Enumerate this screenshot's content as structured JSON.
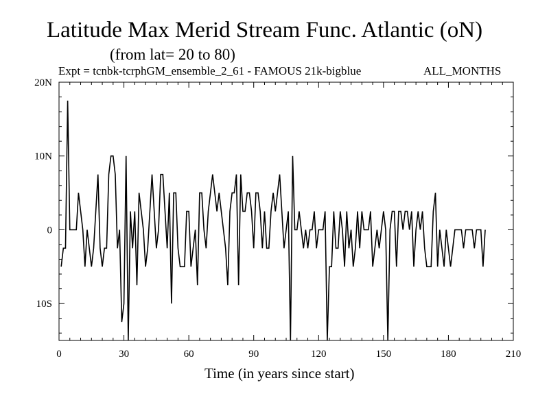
{
  "chart_data": {
    "type": "line",
    "title": "Latitude Max Merid Stream Func. Atlantic (oN)",
    "subtitle": "(from lat= 20 to 80)",
    "experiment": "Expt = tcnbk-tcrphGM_ensemble_2_61 - FAMOUS 21k-bigblue",
    "months": "ALL_MONTHS",
    "xlabel": "Time (in years since start)",
    "ylabel": "",
    "xlim": [
      0,
      210
    ],
    "ylim": [
      -15,
      20
    ],
    "x_ticks": [
      0,
      30,
      60,
      90,
      120,
      150,
      180,
      210
    ],
    "y_ticks": [
      {
        "value": 20,
        "label": "20N"
      },
      {
        "value": 10,
        "label": "10N"
      },
      {
        "value": 0,
        "label": "0"
      },
      {
        "value": -10,
        "label": "10S"
      }
    ],
    "grid": false,
    "x_start": 1,
    "x_step": 1,
    "series": [
      {
        "values": [
          -5,
          -2.5,
          -2.5,
          17.5,
          0,
          0,
          0,
          0,
          5,
          2.5,
          0,
          -5,
          0,
          -2.5,
          -5,
          -2.5,
          2.5,
          7.5,
          -2.5,
          -5,
          -2.5,
          -2.5,
          7.5,
          10,
          10,
          7.5,
          -2.5,
          0,
          -12.5,
          -10,
          10,
          -15,
          2.5,
          -2.5,
          2.5,
          -7.5,
          5,
          2.5,
          0,
          -5,
          -2.5,
          2.5,
          7.5,
          2.5,
          -2.5,
          0,
          7.5,
          7.5,
          2.5,
          -2.5,
          5,
          -10,
          5,
          5,
          -2.5,
          -5,
          -5,
          -5,
          2.5,
          2.5,
          -5,
          -2.5,
          0,
          -7.5,
          5,
          5,
          0,
          -2.5,
          2.5,
          5,
          7.5,
          5,
          2.5,
          5,
          2.5,
          0,
          -2.5,
          -7.5,
          2.5,
          5,
          5,
          7.5,
          -7.5,
          7.5,
          2.5,
          2.5,
          5,
          5,
          2.5,
          -2.5,
          5,
          5,
          2.5,
          -2.5,
          2.5,
          -2.5,
          -2.5,
          2.5,
          5,
          2.5,
          5,
          7.5,
          2.5,
          -2.5,
          0,
          2.5,
          -15,
          10,
          0,
          0,
          2.5,
          0,
          -2.5,
          0,
          -2.5,
          0,
          0,
          2.5,
          -2.5,
          0,
          0,
          0,
          2.5,
          -15,
          -5,
          -5,
          2.5,
          -2.5,
          -2.5,
          2.5,
          0,
          -5,
          2.5,
          -2.5,
          0,
          -5,
          -2.5,
          2.5,
          -2.5,
          2.5,
          0,
          0,
          0,
          2.5,
          -5,
          -2.5,
          0,
          -2.5,
          0,
          2.5,
          0,
          -15,
          0,
          2.5,
          2.5,
          -5,
          2.5,
          2.5,
          0,
          2.5,
          2.5,
          0,
          2.5,
          -5,
          0,
          2.5,
          0,
          2.5,
          -2.5,
          -5,
          -5,
          -5,
          2.5,
          5,
          -5,
          0,
          -2.5,
          -5,
          0,
          -2.5,
          -5,
          -2.5,
          0,
          0,
          0,
          0,
          -2.5,
          0,
          0,
          0,
          0,
          -2.5,
          0,
          0,
          0,
          -5,
          0
        ]
      }
    ]
  }
}
